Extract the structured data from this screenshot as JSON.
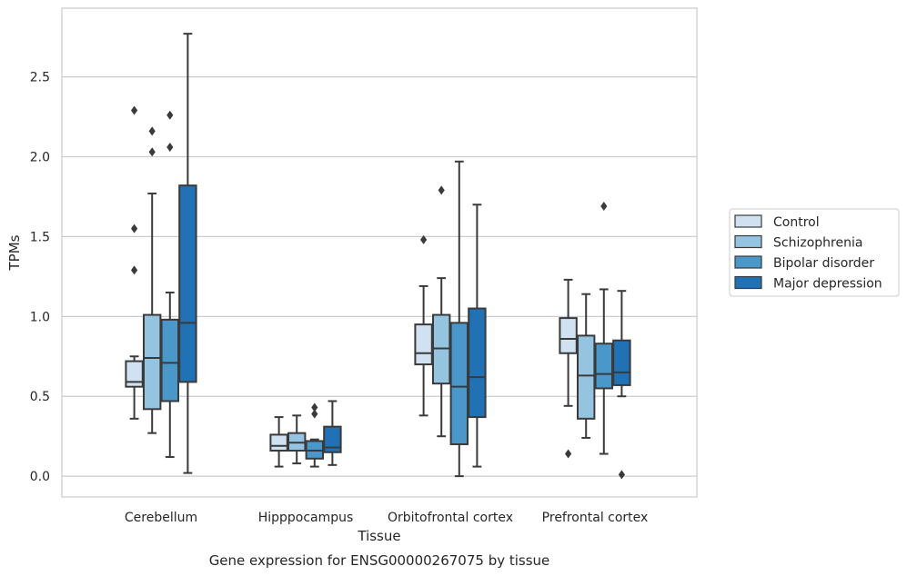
{
  "chart_data": {
    "type": "box",
    "caption": "Gene expression for ENSG00000267075 by tissue",
    "xlabel": "Tissue",
    "ylabel": "TPMs",
    "ylim": [
      -0.13,
      2.93
    ],
    "yticks": [
      0.0,
      0.5,
      1.0,
      1.5,
      2.0,
      2.5
    ],
    "ytick_labels": [
      "0.0",
      "0.5",
      "1.0",
      "1.5",
      "2.0",
      "2.5"
    ],
    "grid": "horizontal",
    "legend_position": "right",
    "categories": [
      "Cerebellum",
      "Hipppocampus",
      "Orbitofrontal cortex",
      "Prefrontal cortex"
    ],
    "series": [
      {
        "name": "Control",
        "color": "#d0e1f2",
        "boxes": [
          {
            "whislo": 0.36,
            "q1": 0.56,
            "med": 0.59,
            "q3": 0.72,
            "whishi": 0.75,
            "fliers": [
              1.29,
              1.55,
              2.29
            ]
          },
          {
            "whislo": 0.06,
            "q1": 0.16,
            "med": 0.19,
            "q3": 0.26,
            "whishi": 0.37,
            "fliers": []
          },
          {
            "whislo": 0.38,
            "q1": 0.7,
            "med": 0.77,
            "q3": 0.95,
            "whishi": 1.19,
            "fliers": [
              1.48
            ]
          },
          {
            "whislo": 0.44,
            "q1": 0.77,
            "med": 0.86,
            "q3": 0.99,
            "whishi": 1.23,
            "fliers": [
              0.14
            ]
          }
        ]
      },
      {
        "name": "Schizophrenia",
        "color": "#94c4df",
        "boxes": [
          {
            "whislo": 0.27,
            "q1": 0.42,
            "med": 0.74,
            "q3": 1.01,
            "whishi": 1.77,
            "fliers": [
              2.03,
              2.16
            ]
          },
          {
            "whislo": 0.08,
            "q1": 0.16,
            "med": 0.21,
            "q3": 0.27,
            "whishi": 0.38,
            "fliers": []
          },
          {
            "whislo": 0.25,
            "q1": 0.58,
            "med": 0.8,
            "q3": 1.01,
            "whishi": 1.24,
            "fliers": [
              1.79
            ]
          },
          {
            "whislo": 0.24,
            "q1": 0.36,
            "med": 0.63,
            "q3": 0.88,
            "whishi": 1.14,
            "fliers": []
          }
        ]
      },
      {
        "name": "Bipolar disorder",
        "color": "#4a98c9",
        "boxes": [
          {
            "whislo": 0.12,
            "q1": 0.47,
            "med": 0.71,
            "q3": 0.98,
            "whishi": 1.15,
            "fliers": [
              2.06,
              2.26
            ]
          },
          {
            "whislo": 0.06,
            "q1": 0.11,
            "med": 0.16,
            "q3": 0.22,
            "whishi": 0.23,
            "fliers": [
              0.39,
              0.43
            ]
          },
          {
            "whislo": 0.0,
            "q1": 0.2,
            "med": 0.56,
            "q3": 0.96,
            "whishi": 1.97,
            "fliers": []
          },
          {
            "whislo": 0.14,
            "q1": 0.55,
            "med": 0.64,
            "q3": 0.83,
            "whishi": 1.17,
            "fliers": [
              1.69
            ]
          }
        ]
      },
      {
        "name": "Major depression",
        "color": "#2171b5",
        "boxes": [
          {
            "whislo": 0.02,
            "q1": 0.59,
            "med": 0.96,
            "q3": 1.82,
            "whishi": 2.77,
            "fliers": []
          },
          {
            "whislo": 0.07,
            "q1": 0.15,
            "med": 0.18,
            "q3": 0.31,
            "whishi": 0.47,
            "fliers": []
          },
          {
            "whislo": 0.06,
            "q1": 0.37,
            "med": 0.62,
            "q3": 1.05,
            "whishi": 1.7,
            "fliers": []
          },
          {
            "whislo": 0.5,
            "q1": 0.57,
            "med": 0.65,
            "q3": 0.85,
            "whishi": 1.16,
            "fliers": [
              0.01
            ]
          }
        ]
      }
    ]
  }
}
